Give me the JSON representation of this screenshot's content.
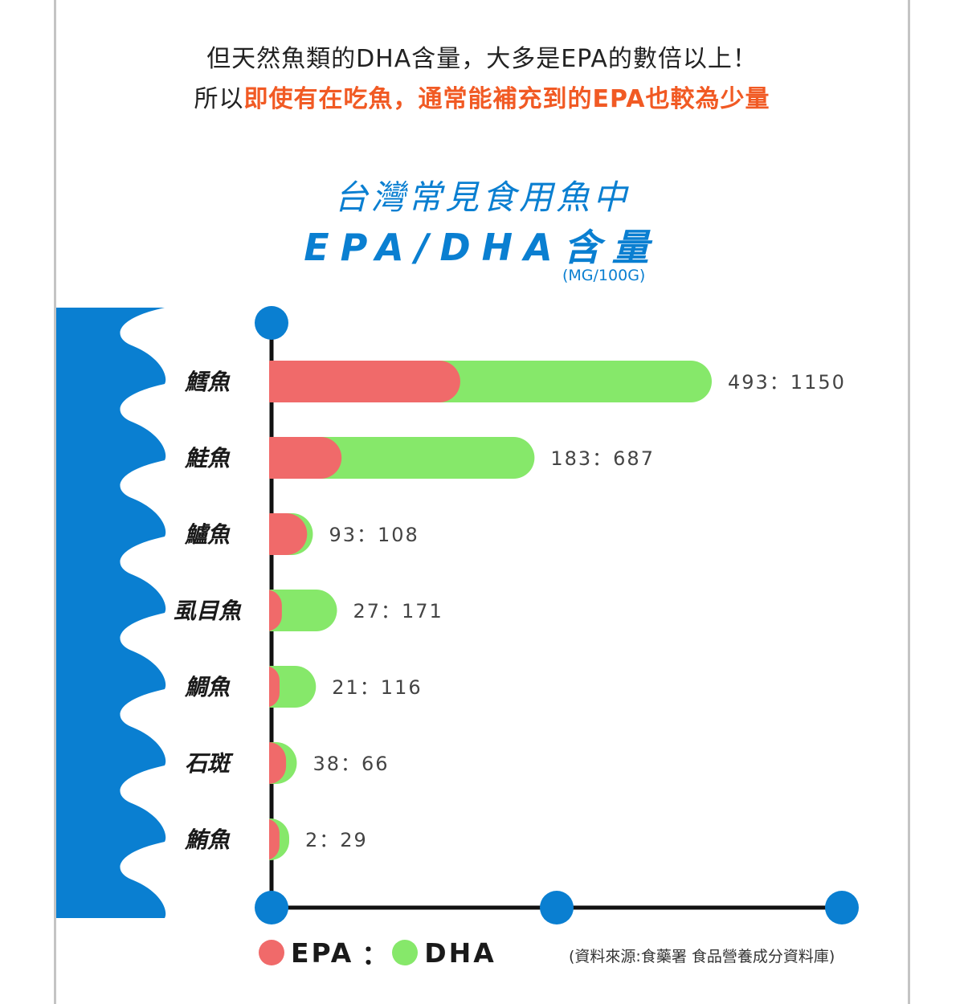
{
  "headline": {
    "line1": "但天然魚類的DHA含量，大多是EPA的數倍以上！",
    "line2_prefix": "所以",
    "line2_highlight": "即使有在吃魚，通常能補充到的EPA也較為少量"
  },
  "colors": {
    "epa": "#f06a6a",
    "dha": "#86e86a",
    "accent": "#0a7fd1",
    "highlight": "#f15a24",
    "axis": "#111111"
  },
  "legend": {
    "epa_label": "EPA",
    "separator": "：",
    "dha_label": "DHA"
  },
  "source": "(資料來源:食藥署 食品營養成分資料庫)",
  "chart_data": {
    "type": "bar",
    "orientation": "horizontal",
    "stacked_overlay": true,
    "title_line1": "台灣常見食用魚中",
    "title_line2": "EPA/DHA含量",
    "unit": "(MG/100G)",
    "categories": [
      "鱈魚",
      "鮭魚",
      "鱸魚",
      "虱目魚",
      "鯛魚",
      "石斑",
      "鮪魚"
    ],
    "series": [
      {
        "name": "EPA",
        "values": [
          493,
          183,
          93,
          27,
          21,
          38,
          2
        ]
      },
      {
        "name": "DHA",
        "values": [
          1150,
          687,
          108,
          171,
          116,
          66,
          29
        ]
      }
    ],
    "labels": [
      "493：1150",
      "183：687",
      "93：108",
      "27：171",
      "21：116",
      "38：66",
      "2：29"
    ]
  }
}
